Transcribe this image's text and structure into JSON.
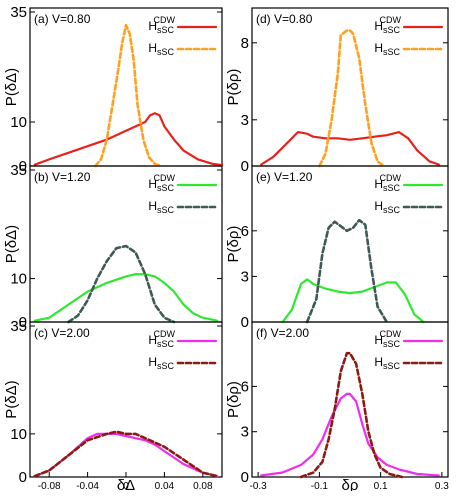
{
  "chart_data": [
    {
      "type": "line",
      "panel_label": "(a) V=0.80",
      "ylabel": "P(δΔ)",
      "xlabel": "",
      "xlim": [
        -0.1,
        0.1
      ],
      "ylim": [
        0,
        35
      ],
      "yticks": [
        0,
        10,
        35
      ],
      "xticks": [],
      "legend_position": "top-right",
      "series": [
        {
          "name": "H_sSC^CDW",
          "name_main": "H",
          "name_sub": "sSC",
          "name_sup": "CDW",
          "color": "#e8221b",
          "style": "solid",
          "x": [
            -0.095,
            -0.08,
            -0.06,
            -0.04,
            -0.02,
            0.0,
            0.01,
            0.02,
            0.025,
            0.03,
            0.035,
            0.04,
            0.05,
            0.06,
            0.075,
            0.09,
            0.1
          ],
          "y": [
            0.3,
            1.5,
            3,
            4.5,
            6,
            8,
            9,
            10,
            11.5,
            12,
            11.5,
            9,
            6,
            3.5,
            1.5,
            0.5,
            0.2
          ]
        },
        {
          "name": "H_sSC",
          "name_main": "H",
          "name_sub": "sSC",
          "name_sup": "",
          "color": "#ffa020",
          "style": "dashed",
          "x": [
            -0.032,
            -0.026,
            -0.02,
            -0.014,
            -0.008,
            -0.004,
            0.0,
            0.004,
            0.008,
            0.012,
            0.018,
            0.024,
            0.03,
            0.036
          ],
          "y": [
            0,
            1.5,
            6,
            14,
            22,
            28,
            32,
            30,
            24,
            14,
            6,
            2,
            0.5,
            0
          ]
        }
      ]
    },
    {
      "type": "line",
      "panel_label": "(b) V=1.20",
      "ylabel": "P(δΔ)",
      "xlabel": "",
      "xlim": [
        -0.1,
        0.1
      ],
      "ylim": [
        0,
        35
      ],
      "yticks": [
        0,
        10,
        35
      ],
      "xticks": [],
      "legend_position": "top-right",
      "series": [
        {
          "name": "H_sSC^CDW",
          "name_main": "H",
          "name_sub": "sSC",
          "name_sup": "CDW",
          "color": "#2ee82e",
          "style": "solid",
          "x": [
            -0.095,
            -0.08,
            -0.06,
            -0.04,
            -0.02,
            0.0,
            0.01,
            0.02,
            0.03,
            0.04,
            0.05,
            0.06,
            0.07,
            0.08,
            0.095
          ],
          "y": [
            0.3,
            1,
            4,
            7,
            9,
            10.5,
            11,
            11,
            10.5,
            9,
            7,
            4,
            2,
            1,
            0.3
          ]
        },
        {
          "name": "H_sSC",
          "name_main": "H",
          "name_sub": "sSC",
          "name_sup": "",
          "color": "#3e5a56",
          "style": "dashed",
          "x": [
            -0.06,
            -0.05,
            -0.04,
            -0.03,
            -0.02,
            -0.01,
            0.0,
            0.01,
            0.02,
            0.03,
            0.04,
            0.05
          ],
          "y": [
            0,
            1.5,
            5,
            10,
            14,
            17,
            17.5,
            16,
            11,
            4,
            1,
            0
          ]
        }
      ]
    },
    {
      "type": "line",
      "panel_label": "(c) V=2.00",
      "ylabel": "P(δΔ)",
      "xlabel": "δΔ",
      "xlim": [
        -0.1,
        0.1
      ],
      "ylim": [
        0,
        35
      ],
      "yticks": [
        0,
        10,
        35
      ],
      "xticks": [
        -0.08,
        -0.04,
        0,
        0.04,
        0.08
      ],
      "xtick_labels": [
        "-0.08",
        "-0.04",
        "0",
        "0.04",
        "0.08"
      ],
      "legend_position": "top-right",
      "series": [
        {
          "name": "H_sSC^CDW",
          "name_main": "H",
          "name_sub": "sSC",
          "name_sup": "CDW",
          "color": "#f02cf0",
          "style": "solid",
          "x": [
            -0.095,
            -0.08,
            -0.06,
            -0.04,
            -0.03,
            -0.02,
            -0.01,
            0.0,
            0.01,
            0.02,
            0.03,
            0.04,
            0.06,
            0.08,
            0.095
          ],
          "y": [
            0.2,
            1.5,
            5,
            9,
            10,
            10,
            10,
            9.5,
            9,
            8.5,
            7.5,
            6,
            3,
            1,
            0.2
          ]
        },
        {
          "name": "H_sSC",
          "name_main": "H",
          "name_sub": "sSC",
          "name_sup": "",
          "color": "#8c1a10",
          "style": "dashed",
          "x": [
            -0.095,
            -0.08,
            -0.06,
            -0.04,
            -0.02,
            -0.01,
            0.0,
            0.01,
            0.02,
            0.04,
            0.06,
            0.08,
            0.095
          ],
          "y": [
            0.2,
            1.5,
            5,
            8.5,
            10,
            10.5,
            10,
            10,
            9,
            7,
            4,
            1,
            0.2
          ]
        }
      ]
    },
    {
      "type": "line",
      "panel_label": "(d) V=0.80",
      "ylabel": "P(δρ)",
      "xlabel": "",
      "xlim": [
        -0.32,
        0.32
      ],
      "ylim": [
        0,
        10
      ],
      "yticks": [
        0,
        3,
        8
      ],
      "xticks": [],
      "legend_position": "top-right",
      "series": [
        {
          "name": "H_sSC^CDW",
          "name_main": "H",
          "name_sub": "sSC",
          "name_sup": "CDW",
          "color": "#e8221b",
          "style": "solid",
          "x": [
            -0.29,
            -0.25,
            -0.2,
            -0.17,
            -0.14,
            -0.12,
            -0.08,
            -0.04,
            0.0,
            0.04,
            0.08,
            0.12,
            0.16,
            0.19,
            0.22,
            0.26,
            0.29
          ],
          "y": [
            0.1,
            0.6,
            1.6,
            2.2,
            2.1,
            1.9,
            1.8,
            1.8,
            1.7,
            1.8,
            1.9,
            2.0,
            2.2,
            1.8,
            1.0,
            0.3,
            0.1
          ]
        },
        {
          "name": "H_sSC",
          "name_main": "H",
          "name_sub": "sSC",
          "name_sup": "",
          "color": "#ffa020",
          "style": "dashed",
          "x": [
            -0.1,
            -0.08,
            -0.06,
            -0.04,
            -0.03,
            -0.01,
            0.0,
            0.01,
            0.03,
            0.05,
            0.07,
            0.09,
            0.11
          ],
          "y": [
            0,
            0.8,
            3,
            6,
            8.5,
            8.8,
            8.8,
            8.6,
            7,
            4,
            1.5,
            0.3,
            0
          ]
        }
      ]
    },
    {
      "type": "line",
      "panel_label": "(e) V=1.20",
      "ylabel": "P(δρ)",
      "xlabel": "",
      "xlim": [
        -0.32,
        0.32
      ],
      "ylim": [
        0,
        10
      ],
      "yticks": [
        0,
        3,
        6
      ],
      "xticks": [],
      "legend_position": "top-right",
      "series": [
        {
          "name": "H_sSC^CDW",
          "name_main": "H",
          "name_sub": "sSC",
          "name_sup": "CDW",
          "color": "#2ee82e",
          "style": "solid",
          "x": [
            -0.22,
            -0.19,
            -0.16,
            -0.14,
            -0.12,
            -0.08,
            -0.04,
            0.0,
            0.04,
            0.08,
            0.12,
            0.15,
            0.18,
            0.21,
            0.24
          ],
          "y": [
            0,
            0.8,
            2.5,
            2.8,
            2.5,
            2.2,
            2.0,
            1.9,
            2.0,
            2.3,
            2.6,
            2.6,
            1.8,
            0.5,
            0
          ]
        },
        {
          "name": "H_sSC",
          "name_main": "H",
          "name_sub": "sSC",
          "name_sup": "",
          "color": "#3e5a56",
          "style": "dashed",
          "x": [
            -0.14,
            -0.11,
            -0.09,
            -0.07,
            -0.05,
            -0.03,
            -0.01,
            0.01,
            0.03,
            0.05,
            0.07,
            0.09,
            0.12
          ],
          "y": [
            0,
            1.5,
            4.5,
            6.2,
            6.6,
            6.3,
            6.0,
            6.2,
            6.7,
            6.4,
            3.5,
            1,
            0
          ]
        }
      ]
    },
    {
      "type": "line",
      "panel_label": "(f) V=2.00",
      "ylabel": "P(δρ)",
      "xlabel": "δρ",
      "xlim": [
        -0.32,
        0.32
      ],
      "ylim": [
        0,
        10
      ],
      "yticks": [
        0,
        3,
        6
      ],
      "xticks": [
        -0.3,
        -0.1,
        0.1,
        0.3
      ],
      "xtick_labels": [
        "-0.3",
        "-0.1",
        "0.1",
        "0.3"
      ],
      "legend_position": "top-right",
      "series": [
        {
          "name": "H_sSC^CDW",
          "name_main": "H",
          "name_sub": "sSC",
          "name_sup": "CDW",
          "color": "#f02cf0",
          "style": "solid",
          "x": [
            -0.29,
            -0.22,
            -0.16,
            -0.12,
            -0.09,
            -0.06,
            -0.03,
            -0.01,
            0.0,
            0.02,
            0.04,
            0.06,
            0.09,
            0.12,
            0.16,
            0.22,
            0.29
          ],
          "y": [
            0.1,
            0.3,
            0.8,
            1.5,
            2.5,
            4,
            5.2,
            5.5,
            5.5,
            5,
            3.5,
            2.2,
            1.3,
            0.8,
            0.5,
            0.2,
            0.1
          ]
        },
        {
          "name": "H_sSC",
          "name_main": "H",
          "name_sub": "sSC",
          "name_sup": "",
          "color": "#8c1a10",
          "style": "dashed",
          "x": [
            -0.16,
            -0.12,
            -0.09,
            -0.07,
            -0.05,
            -0.03,
            -0.01,
            0.0,
            0.02,
            0.04,
            0.06,
            0.08,
            0.1,
            0.13,
            0.17
          ],
          "y": [
            0,
            0.3,
            1,
            2.5,
            4.5,
            7,
            8.2,
            8.2,
            7.5,
            5.5,
            3,
            1.5,
            0.6,
            0.2,
            0
          ]
        }
      ]
    }
  ]
}
